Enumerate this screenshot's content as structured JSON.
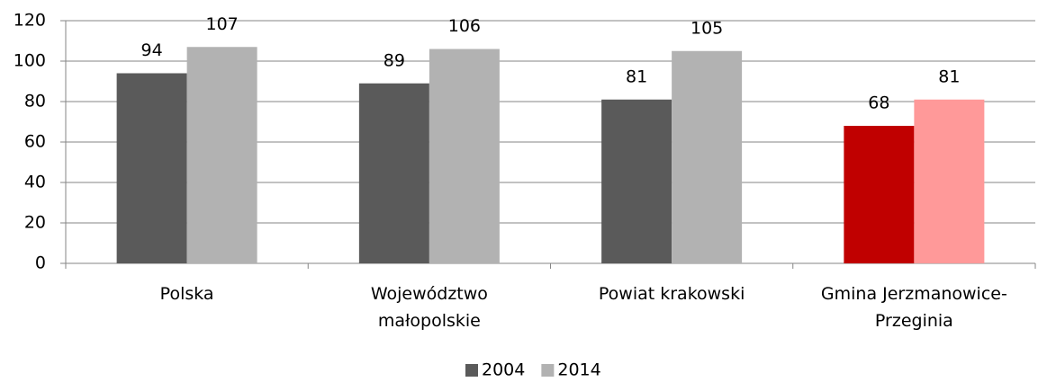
{
  "chart_data": {
    "type": "bar",
    "categories": [
      "Polska",
      "Województwo małopolskie",
      "Powiat krakowski",
      "Gmina Jerzmanowice-Przeginia"
    ],
    "series": [
      {
        "name": "2004",
        "color": "#5a5a5a",
        "colors": [
          "#5a5a5a",
          "#5a5a5a",
          "#5a5a5a",
          "#c00000"
        ],
        "values": [
          94,
          89,
          81,
          68
        ]
      },
      {
        "name": "2014",
        "color": "#b2b2b2",
        "colors": [
          "#b2b2b2",
          "#b2b2b2",
          "#b2b2b2",
          "#ff9999"
        ],
        "values": [
          107,
          106,
          105,
          81
        ]
      }
    ],
    "ylim": [
      0,
      120
    ],
    "yticks": [
      0,
      20,
      40,
      60,
      80,
      100,
      120
    ],
    "grid": true,
    "legend": "bottom"
  }
}
